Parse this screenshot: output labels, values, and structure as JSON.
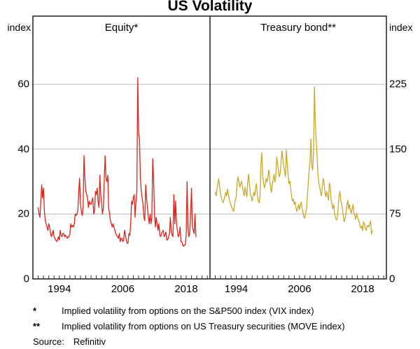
{
  "title": "US Volatility",
  "footnotes": {
    "items": [
      {
        "marker": "*",
        "text": "Implied volatility from options on the S&P500 index (VIX index)"
      },
      {
        "marker": "**",
        "text": "Implied volatility from options on US Treasury securities (MOVE index)"
      }
    ],
    "source_label": "Source:",
    "source_value": "Refinitiv"
  },
  "chart_data": {
    "type": "line",
    "title": "US Volatility",
    "grid": true,
    "x_axis": {
      "range": [
        1989,
        2022.5
      ],
      "tick_interval": 1,
      "labels": [
        "1994",
        "2006",
        "2018"
      ],
      "label_years": [
        1994,
        2006,
        2018
      ]
    },
    "left_axis": {
      "label": "index",
      "ticks": [
        0,
        20,
        40,
        60
      ],
      "range": [
        0,
        81
      ]
    },
    "right_axis": {
      "label": "index",
      "ticks": [
        0,
        75,
        150,
        225
      ],
      "range": [
        0,
        303.75
      ]
    },
    "colors": {
      "frame": "#2d2d2d",
      "grid": "#bcbcbc",
      "text": "#000000"
    },
    "panels": [
      {
        "label": "Equity*",
        "series": "VIX index",
        "color": "#e02318",
        "axis": "left",
        "x_start": 1990,
        "x_step": 0.1666667,
        "values": [
          22,
          20,
          19,
          24,
          29,
          25,
          28,
          21,
          18,
          17,
          16,
          15,
          17,
          16,
          14,
          13,
          14,
          15,
          13,
          12.5,
          12,
          11.5,
          12,
          13,
          12,
          15,
          13.5,
          13,
          14,
          14,
          13,
          13.5,
          13,
          12.5,
          13,
          13,
          14,
          17,
          16,
          16.5,
          16,
          17,
          20,
          19.5,
          20,
          21,
          27,
          31,
          23,
          21,
          19.5,
          22,
          38,
          31,
          27,
          26,
          25,
          22,
          24,
          23,
          23,
          24,
          25,
          20,
          21,
          27,
          26,
          28,
          24,
          22,
          32,
          26,
          23,
          20,
          22,
          31,
          38,
          31,
          30,
          32,
          22,
          20,
          18,
          17,
          16,
          17,
          16,
          15,
          14,
          13.5,
          13,
          12.5,
          14,
          11.5,
          12.5,
          12.5,
          11.5,
          12,
          15,
          13.5,
          12,
          11,
          11,
          14,
          13.5,
          17,
          24,
          23,
          25,
          26,
          19,
          24,
          27,
          62,
          45,
          43,
          31,
          27,
          25,
          23,
          19,
          18,
          29,
          25,
          22,
          19,
          17,
          20,
          17,
          19,
          37,
          31,
          20,
          16,
          19,
          17,
          15,
          17,
          13.5,
          13,
          14,
          14.5,
          15,
          13,
          13.5,
          14.5,
          12,
          12,
          13,
          14,
          19,
          15,
          13.5,
          13,
          26,
          17,
          24,
          17,
          15,
          13,
          13.5,
          16,
          11.5,
          11.5,
          10.5,
          10,
          10.5,
          10.5,
          14,
          30,
          16,
          13,
          14,
          20,
          28,
          16,
          15,
          14,
          20,
          13
        ]
      },
      {
        "label": "Treasury bond**",
        "series": "MOVE index",
        "color": "#caa82a",
        "axis": "right",
        "x_start": 1990,
        "x_step": 0.1666667,
        "values": [
          100,
          96,
          104,
          110,
          116,
          106,
          98,
          94,
          90,
          88,
          92,
          96,
          100,
          96,
          104,
          98,
          92,
          88,
          85,
          82,
          80,
          78,
          86,
          92,
          96,
          112,
          118,
          112,
          106,
          110,
          113,
          106,
          100,
          96,
          106,
          100,
          95,
          113,
          121,
          108,
          98,
          95,
          90,
          95,
          100,
          96,
          106,
          110,
          96,
          90,
          88,
          96,
          132,
          146,
          121,
          111,
          105,
          110,
          116,
          112,
          118,
          126,
          116,
          105,
          100,
          110,
          115,
          121,
          112,
          118,
          141,
          134,
          125,
          118,
          122,
          136,
          148,
          139,
          130,
          124,
          118,
          149,
          134,
          120,
          110,
          113,
          105,
          95,
          90,
          92,
          86,
          89,
          82,
          78,
          82,
          86,
          80,
          86,
          89,
          82,
          76,
          72,
          70,
          76,
          81,
          96,
          111,
          126,
          136,
          162,
          131,
          126,
          146,
          222,
          181,
          161,
          141,
          121,
          111,
          106,
          100,
          96,
          106,
          116,
          111,
          100,
          95,
          101,
          96,
          91,
          111,
          106,
          91,
          86,
          81,
          86,
          76,
          71,
          68,
          70,
          81,
          96,
          101,
          91,
          86,
          81,
          71,
          66,
          71,
          76,
          86,
          91,
          81,
          86,
          79,
          76,
          81,
          86,
          76,
          73,
          69,
          76,
          71,
          69,
          66,
          61,
          59,
          61,
          56,
          66,
          63,
          59,
          56,
          61,
          62,
          60,
          64,
          67,
          52,
          56
        ]
      }
    ]
  }
}
